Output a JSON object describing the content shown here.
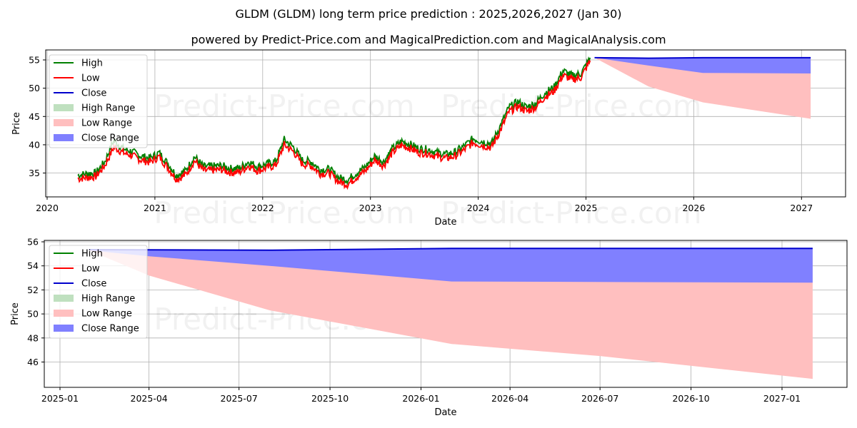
{
  "header": {
    "title": "GLDM (GLDM) long term price prediction : 2025,2026,2027 (Jan 30)",
    "subtitle": "powered by Predict-Price.com and MagicalPrediction.com and MagicalAnalysis.com"
  },
  "watermark": "Predict-Price.com",
  "legend": {
    "items": [
      {
        "label": "High",
        "type": "line",
        "color": "#008000"
      },
      {
        "label": "Low",
        "type": "line",
        "color": "#ff0000"
      },
      {
        "label": "Close",
        "type": "line",
        "color": "#0000cc"
      },
      {
        "label": "High Range",
        "type": "patch",
        "color": "#bfe0bf"
      },
      {
        "label": "Low Range",
        "type": "patch",
        "color": "#ffbfbf"
      },
      {
        "label": "Close Range",
        "type": "patch",
        "color": "#8080ff"
      }
    ]
  },
  "chart_data": [
    {
      "type": "line",
      "title": "GLDM (GLDM) long term price prediction : 2025,2026,2027 (Jan 30)",
      "xlabel": "Date",
      "ylabel": "Price",
      "x_ticks": [
        "2020",
        "2021",
        "2022",
        "2023",
        "2024",
        "2025",
        "2026",
        "2027"
      ],
      "y_ticks": [
        35,
        40,
        45,
        50,
        55
      ],
      "ylim": [
        31,
        56.5
      ],
      "grid": true,
      "legend_position": "upper left",
      "historical": {
        "x": [
          "2020-04",
          "2020-05",
          "2020-06",
          "2020-07",
          "2020-08",
          "2020-09",
          "2020-10",
          "2020-11",
          "2020-12",
          "2021-01",
          "2021-02",
          "2021-03",
          "2021-04",
          "2021-05",
          "2021-06",
          "2021-07",
          "2021-08",
          "2021-09",
          "2021-10",
          "2021-11",
          "2021-12",
          "2022-01",
          "2022-02",
          "2022-03",
          "2022-04",
          "2022-05",
          "2022-06",
          "2022-07",
          "2022-08",
          "2022-09",
          "2022-10",
          "2022-11",
          "2022-12",
          "2023-01",
          "2023-02",
          "2023-03",
          "2023-04",
          "2023-05",
          "2023-06",
          "2023-07",
          "2023-08",
          "2023-09",
          "2023-10",
          "2023-11",
          "2023-12",
          "2024-01",
          "2024-02",
          "2024-03",
          "2024-04",
          "2024-05",
          "2024-06",
          "2024-07",
          "2024-08",
          "2024-09",
          "2024-10",
          "2024-11",
          "2024-12",
          "2025-01"
        ],
        "series": [
          {
            "name": "High",
            "values": [
              34.6,
              34.9,
              35.0,
              37.0,
              40.8,
              39.3,
              38.8,
              38.0,
              37.6,
              38.6,
              36.6,
              34.6,
              35.4,
              37.9,
              36.1,
              36.2,
              36.3,
              35.8,
              35.9,
              37.0,
              36.1,
              36.6,
              37.1,
              40.9,
              39.6,
              37.3,
              37.0,
              35.6,
              35.7,
              34.2,
              33.8,
              35.0,
              36.1,
              38.0,
              37.0,
              39.2,
              40.6,
              40.1,
              39.3,
              39.2,
              38.6,
              38.3,
              38.7,
              39.8,
              41.1,
              40.6,
              40.2,
              43.1,
              46.6,
              47.6,
              46.6,
              47.4,
              49.2,
              50.2,
              53.1,
              52.2,
              52.6,
              55.3
            ]
          },
          {
            "name": "Low",
            "values": [
              34.0,
              34.2,
              34.4,
              36.3,
              39.6,
              38.6,
              38.1,
              37.3,
              36.9,
              37.9,
              35.9,
              33.9,
              34.7,
              37.2,
              35.4,
              35.5,
              35.6,
              35.1,
              35.2,
              36.3,
              35.4,
              35.9,
              36.4,
              40.0,
              38.8,
              36.6,
              36.3,
              34.9,
              35.0,
              33.5,
              33.0,
              34.3,
              35.4,
              37.3,
              36.3,
              38.5,
              39.9,
              39.4,
              38.6,
              38.5,
              37.9,
              37.6,
              38.0,
              39.1,
              40.4,
              39.9,
              39.5,
              42.3,
              45.8,
              46.8,
              45.9,
              46.7,
              48.5,
              49.5,
              52.3,
              51.5,
              51.9,
              54.8
            ]
          }
        ]
      },
      "forecast": {
        "x": [
          "2025-01-30",
          "2025-08-01",
          "2026-02-01",
          "2027-02-01"
        ],
        "close": [
          55.4,
          55.3,
          55.4,
          55.4
        ],
        "close_range_low": [
          55.4,
          54.0,
          52.7,
          52.6
        ],
        "low_range_low": [
          55.4,
          50.3,
          47.5,
          44.6
        ]
      }
    },
    {
      "type": "area",
      "xlabel": "Date",
      "ylabel": "Price",
      "x_ticks": [
        "2025-01",
        "2025-04",
        "2025-07",
        "2025-10",
        "2026-01",
        "2026-04",
        "2026-07",
        "2026-10",
        "2027-01"
      ],
      "y_ticks": [
        46,
        48,
        50,
        52,
        54,
        56
      ],
      "ylim": [
        44.1,
        56.1
      ],
      "grid": true,
      "legend_position": "upper left",
      "series": [
        {
          "name": "Close",
          "x": [
            "2025-01-30",
            "2025-08-01",
            "2026-02-01",
            "2026-07-01",
            "2027-02-01"
          ],
          "values": [
            55.35,
            55.3,
            55.45,
            55.45,
            55.45
          ]
        },
        {
          "name": "Close Range (lower)",
          "x": [
            "2025-01-30",
            "2025-04-01",
            "2025-08-01",
            "2026-02-01",
            "2027-02-01"
          ],
          "values": [
            55.3,
            54.8,
            54.0,
            52.7,
            52.6
          ]
        },
        {
          "name": "Low Range (lower)",
          "x": [
            "2025-01-30",
            "2025-04-01",
            "2025-08-01",
            "2026-02-01",
            "2026-07-01",
            "2027-02-01"
          ],
          "values": [
            55.3,
            53.2,
            50.3,
            47.5,
            46.5,
            44.6
          ]
        }
      ]
    }
  ]
}
